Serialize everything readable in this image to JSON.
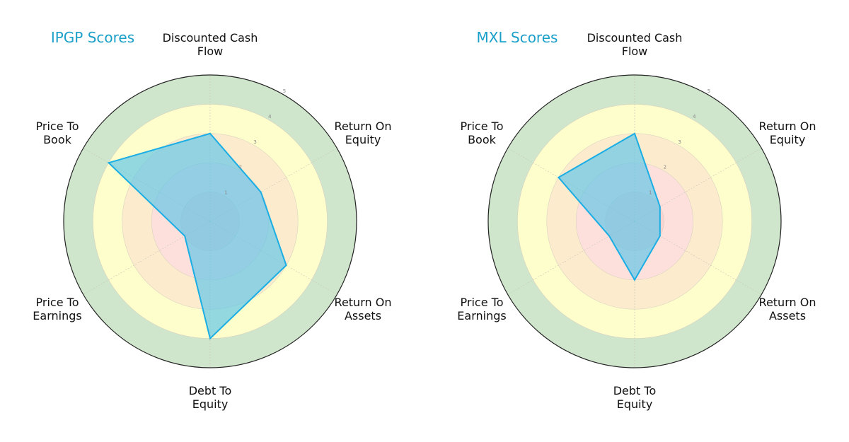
{
  "chart_data": [
    {
      "type": "radar",
      "title": "IPGP Scores",
      "axes": [
        "Discounted Cash Flow",
        "Return On Equity",
        "Return On Assets",
        "Debt To Equity",
        "Price To Earnings",
        "Price To Book"
      ],
      "axis_label_lines": [
        [
          "Discounted Cash",
          "Flow"
        ],
        [
          "Return On",
          "Equity"
        ],
        [
          "Return On",
          "Assets"
        ],
        [
          "Debt To",
          "Equity"
        ],
        [
          "Price To",
          "Earnings"
        ],
        [
          "Price To",
          "Book"
        ]
      ],
      "values": [
        3,
        2,
        3,
        4,
        1,
        4
      ],
      "rlim": [
        0,
        5
      ],
      "rticks": [
        "1",
        "2",
        "3",
        "4",
        "5"
      ]
    },
    {
      "type": "radar",
      "title": "MXL Scores",
      "axes": [
        "Discounted Cash Flow",
        "Return On Equity",
        "Return On Assets",
        "Debt To Equity",
        "Price To Earnings",
        "Price To Book"
      ],
      "axis_label_lines": [
        [
          "Discounted Cash",
          "Flow"
        ],
        [
          "Return On",
          "Equity"
        ],
        [
          "Return On",
          "Assets"
        ],
        [
          "Debt To",
          "Equity"
        ],
        [
          "Price To",
          "Earnings"
        ],
        [
          "Price To",
          "Book"
        ]
      ],
      "values": [
        3,
        1,
        1,
        2,
        1,
        3
      ],
      "rlim": [
        0,
        5
      ],
      "rticks": [
        "1",
        "2",
        "3",
        "4",
        "5"
      ]
    }
  ],
  "panels": [
    {
      "title": "IPGP Scores",
      "labels": {
        "dcf_1": "Discounted Cash",
        "dcf_2": "Flow",
        "roe_1": "Return On",
        "roe_2": "Equity",
        "roa_1": "Return On",
        "roa_2": "Assets",
        "de_1": "Debt To",
        "de_2": "Equity",
        "pe_1": "Price To",
        "pe_2": "Earnings",
        "pb_1": "Price To",
        "pb_2": "Book"
      }
    },
    {
      "title": "MXL Scores",
      "labels": {
        "dcf_1": "Discounted Cash",
        "dcf_2": "Flow",
        "roe_1": "Return On",
        "roe_2": "Equity",
        "roa_1": "Return On",
        "roa_2": "Assets",
        "de_1": "Debt To",
        "de_2": "Equity",
        "pe_1": "Price To",
        "pe_2": "Earnings",
        "pb_1": "Price To",
        "pb_2": "Book"
      }
    }
  ],
  "colors": {
    "title": "#1a9fc9",
    "ring_0_1": "#f9d3d0",
    "ring_1_2": "#fde0dc",
    "ring_2_3": "#fdebcd",
    "ring_3_4": "#fefdcc",
    "ring_4_5": "#cfe5cc",
    "polygon_fill": "#5bc4ea",
    "polygon_edge": "#1aaee5",
    "outer_circle": "#222222"
  }
}
